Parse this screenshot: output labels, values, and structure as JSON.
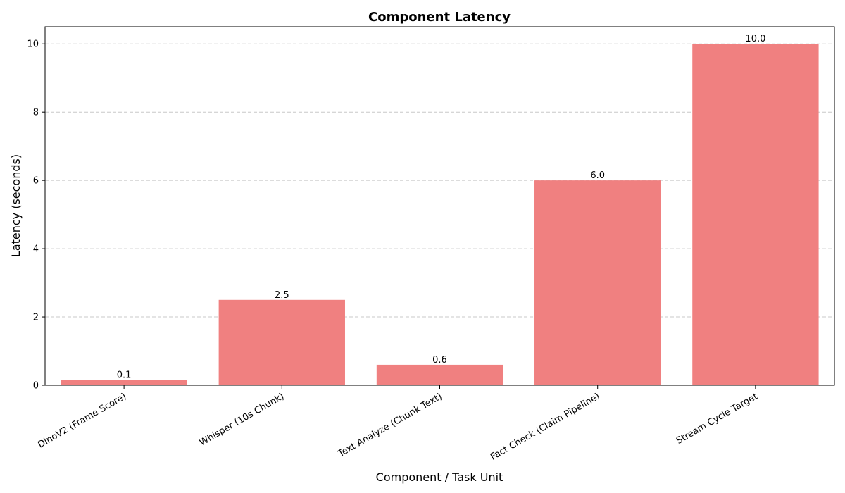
{
  "chart_data": {
    "type": "bar",
    "title": "Component Latency",
    "xlabel": "Component / Task Unit",
    "ylabel": "Latency (seconds)",
    "categories": [
      "DinoV2 (Frame Score)",
      "Whisper (10s Chunk)",
      "Text Analyze (Chunk Text)",
      "Fact Check (Claim Pipeline)",
      "Stream Cycle Target"
    ],
    "values": [
      0.15,
      2.5,
      0.6,
      6.0,
      10.0
    ],
    "value_labels": [
      "0.1",
      "2.5",
      "0.6",
      "6.0",
      "10.0"
    ],
    "ylim": [
      0,
      10.5
    ],
    "yticks": [
      0,
      2,
      4,
      6,
      8,
      10
    ],
    "ytick_labels": [
      "0",
      "2",
      "4",
      "6",
      "8",
      "10"
    ],
    "grid": "y-dashed",
    "bar_color": "#f08080"
  }
}
